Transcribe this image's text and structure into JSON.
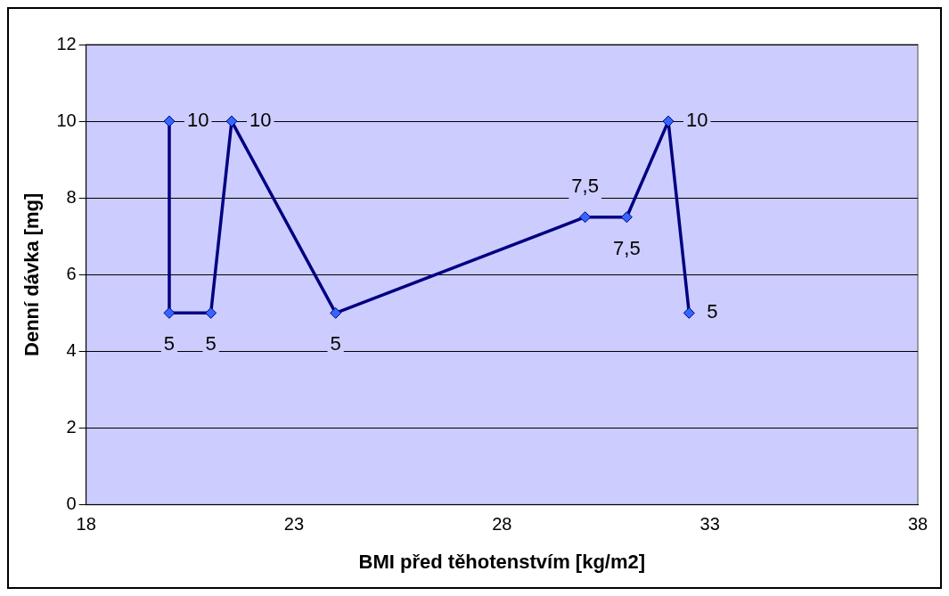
{
  "chart_data": {
    "type": "line",
    "xlabel": "BMI před těhotenstvím [kg/m2]",
    "ylabel": "Denní dávka [mg]",
    "x": [
      20,
      20,
      21,
      21.5,
      24,
      30,
      31,
      32,
      32.5
    ],
    "series": [
      {
        "color": "#000080",
        "values": [
          10,
          5,
          5,
          10,
          5,
          7.5,
          7.5,
          10,
          5
        ],
        "value_labels": [
          "10",
          "5",
          "5",
          "10",
          "5",
          "7,5",
          "7,5",
          "10",
          "5"
        ]
      }
    ],
    "xlim": [
      18,
      38
    ],
    "xticks": [
      18,
      23,
      28,
      33,
      38
    ],
    "ylim": [
      0,
      12
    ],
    "yticks": [
      0,
      2,
      4,
      6,
      8,
      10,
      12
    ],
    "grid": "y",
    "legend": false,
    "marker": "diamond",
    "line_style": "solid"
  }
}
